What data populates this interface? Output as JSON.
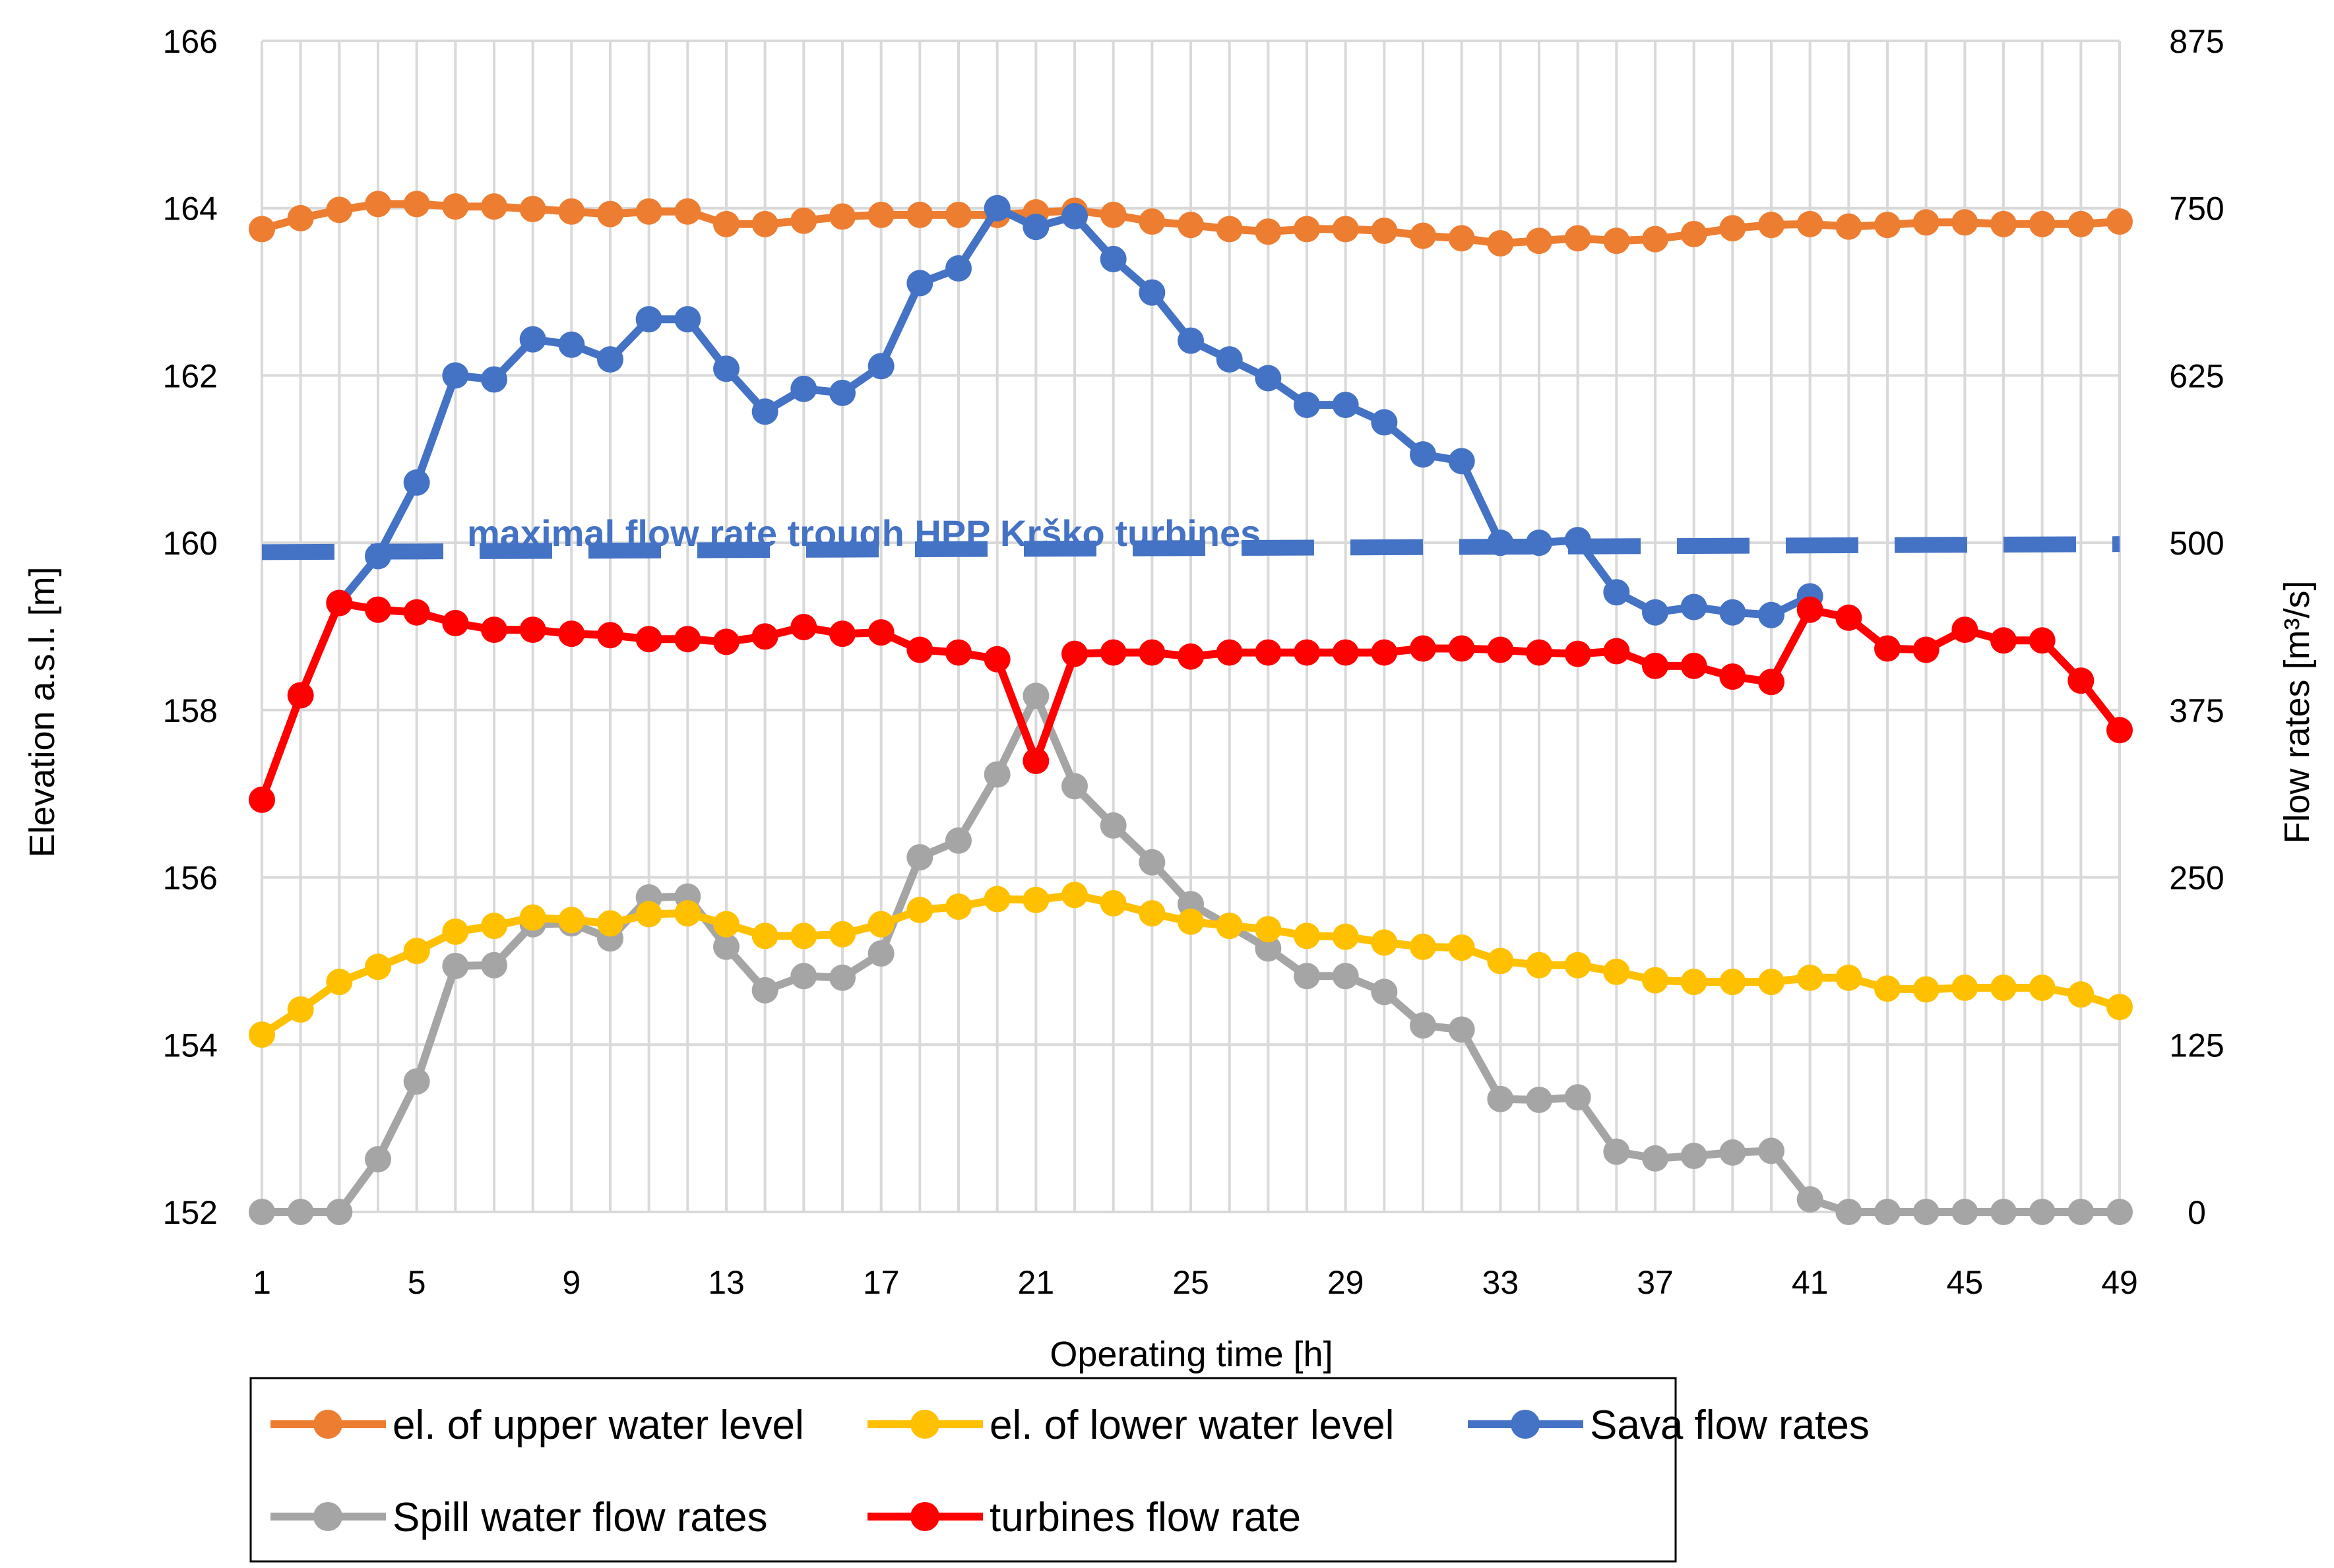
{
  "chart_data": {
    "type": "line",
    "xlabel": "Operating time [h]",
    "ylabel_left": "Elevation a.s.l. [m]",
    "ylabel_right": "Flow rates [m³/s]",
    "x": [
      1,
      2,
      3,
      4,
      5,
      6,
      7,
      8,
      9,
      10,
      11,
      12,
      13,
      14,
      15,
      16,
      17,
      18,
      19,
      20,
      21,
      22,
      23,
      24,
      25,
      26,
      27,
      28,
      29,
      30,
      31,
      32,
      33,
      34,
      35,
      36,
      37,
      38,
      39,
      40,
      41,
      42,
      43,
      44,
      45,
      46,
      47,
      48,
      49
    ],
    "xtick_labels": [
      "1",
      "5",
      "9",
      "13",
      "17",
      "21",
      "25",
      "29",
      "33",
      "37",
      "41",
      "45",
      "49"
    ],
    "ylim_left": [
      152,
      166
    ],
    "yticks_left": [
      "152",
      "154",
      "156",
      "158",
      "160",
      "162",
      "164",
      "166"
    ],
    "ylim_right": [
      0,
      875
    ],
    "yticks_right": [
      "0",
      "125",
      "250",
      "375",
      "500",
      "625",
      "750",
      "875"
    ],
    "grid": true,
    "legend_position": "bottom",
    "series": [
      {
        "name": "el. of upper water level",
        "axis": "left",
        "color": "#ED7D31",
        "values": [
          163.75,
          163.88,
          163.98,
          164.05,
          164.05,
          164.02,
          164.02,
          163.99,
          163.96,
          163.93,
          163.96,
          163.96,
          163.81,
          163.81,
          163.85,
          163.9,
          163.92,
          163.92,
          163.92,
          163.92,
          163.95,
          163.97,
          163.92,
          163.84,
          163.8,
          163.75,
          163.72,
          163.75,
          163.75,
          163.73,
          163.67,
          163.64,
          163.58,
          163.61,
          163.64,
          163.61,
          163.63,
          163.69,
          163.76,
          163.8,
          163.81,
          163.78,
          163.8,
          163.83,
          163.83,
          163.81,
          163.81,
          163.81,
          163.84
        ]
      },
      {
        "name": "el. of lower water level",
        "axis": "left",
        "color": "#FFC000",
        "values": [
          154.12,
          154.42,
          154.75,
          154.93,
          155.12,
          155.35,
          155.42,
          155.52,
          155.49,
          155.45,
          155.56,
          155.57,
          155.44,
          155.3,
          155.3,
          155.32,
          155.44,
          155.61,
          155.65,
          155.74,
          155.73,
          155.79,
          155.69,
          155.57,
          155.47,
          155.42,
          155.38,
          155.3,
          155.29,
          155.22,
          155.17,
          155.16,
          155.0,
          154.95,
          154.95,
          154.87,
          154.77,
          154.75,
          154.75,
          154.75,
          154.8,
          154.8,
          154.67,
          154.66,
          154.68,
          154.68,
          154.68,
          154.6,
          154.45
        ]
      },
      {
        "name": "Sava flow rates",
        "axis": "right",
        "color": "#4472C4",
        "values": [
          null,
          null,
          455,
          490,
          545,
          625,
          622,
          652,
          648,
          637,
          667,
          667,
          630,
          598,
          615,
          612,
          632,
          694,
          705,
          750,
          736,
          744,
          712,
          687,
          651,
          637,
          623,
          603,
          603,
          590,
          566,
          561,
          500,
          500,
          502,
          463,
          448,
          452,
          448,
          446,
          460,
          null,
          null,
          null,
          null,
          null,
          null,
          null,
          null
        ]
      },
      {
        "name": "Spill water flow rates",
        "axis": "left",
        "color": "#A5A5A5",
        "values": [
          152.0,
          152.0,
          152.0,
          152.63,
          153.56,
          154.94,
          154.95,
          155.44,
          155.45,
          155.27,
          155.76,
          155.77,
          155.17,
          154.65,
          154.82,
          154.8,
          155.09,
          156.24,
          156.44,
          157.23,
          158.17,
          157.09,
          156.62,
          156.18,
          155.68,
          155.42,
          155.15,
          154.82,
          154.82,
          154.63,
          154.23,
          154.18,
          153.35,
          153.34,
          153.37,
          152.72,
          152.64,
          152.67,
          152.71,
          152.73,
          152.15,
          152.0,
          152.0,
          152.0,
          152.0,
          152.0,
          152.0,
          152.0,
          152.0
        ]
      },
      {
        "name": "turbines flow rate",
        "axis": "right",
        "color": "#FF0000",
        "values": [
          308,
          386,
          455,
          450,
          448,
          440,
          435,
          435,
          432,
          431,
          428,
          428,
          426,
          430,
          437,
          432,
          433,
          420,
          418,
          413,
          337,
          417,
          418,
          418,
          415,
          418,
          418,
          418,
          418,
          418,
          421,
          421,
          420,
          418,
          417,
          419,
          408,
          408,
          400,
          396,
          450,
          444,
          421,
          420,
          435,
          427,
          427,
          397,
          360
        ]
      },
      {
        "name": "maximal flow rate trough HPP Krško turbines",
        "axis": "right",
        "color": "#4472C4",
        "style": "dashed",
        "values_start_end": [
          493,
          499
        ]
      }
    ],
    "annotations": [
      {
        "text": "maximal flow rate trough HPP Krško turbines",
        "color": "#4472C4"
      }
    ]
  }
}
